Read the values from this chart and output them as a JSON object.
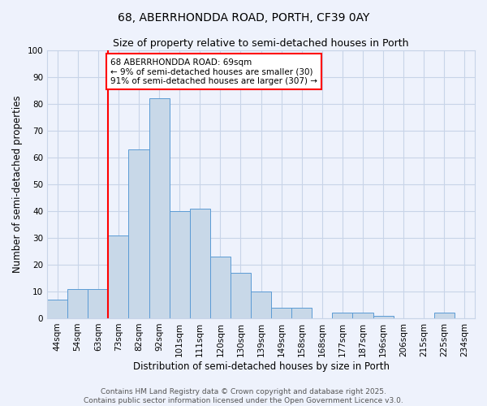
{
  "title": "68, ABERRHONDDA ROAD, PORTH, CF39 0AY",
  "subtitle": "Size of property relative to semi-detached houses in Porth",
  "xlabel": "Distribution of semi-detached houses by size in Porth",
  "ylabel": "Number of semi-detached properties",
  "categories": [
    "44sqm",
    "54sqm",
    "63sqm",
    "73sqm",
    "82sqm",
    "92sqm",
    "101sqm",
    "111sqm",
    "120sqm",
    "130sqm",
    "139sqm",
    "149sqm",
    "158sqm",
    "168sqm",
    "177sqm",
    "187sqm",
    "196sqm",
    "206sqm",
    "215sqm",
    "225sqm",
    "234sqm"
  ],
  "values": [
    7,
    11,
    11,
    31,
    63,
    82,
    40,
    41,
    23,
    17,
    10,
    4,
    4,
    0,
    2,
    2,
    1,
    0,
    0,
    2,
    0
  ],
  "bar_color": "#c8d8e8",
  "bar_edge_color": "#5b9bd5",
  "grid_color": "#c8d4e8",
  "background_color": "#eef2fc",
  "vline_color": "red",
  "vline_pos": 2.5,
  "annotation_text": "68 ABERRHONDDA ROAD: 69sqm\n← 9% of semi-detached houses are smaller (30)\n91% of semi-detached houses are larger (307) →",
  "annotation_box_color": "white",
  "annotation_box_edge": "red",
  "ylim": [
    0,
    100
  ],
  "yticks": [
    0,
    10,
    20,
    30,
    40,
    50,
    60,
    70,
    80,
    90,
    100
  ],
  "footer_line1": "Contains HM Land Registry data © Crown copyright and database right 2025.",
  "footer_line2": "Contains public sector information licensed under the Open Government Licence v3.0.",
  "title_fontsize": 10,
  "subtitle_fontsize": 9,
  "axis_label_fontsize": 8.5,
  "tick_fontsize": 7.5,
  "annotation_fontsize": 7.5,
  "footer_fontsize": 6.5
}
